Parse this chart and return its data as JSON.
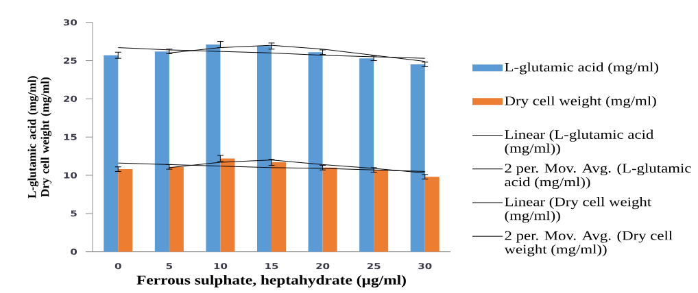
{
  "chart_data": {
    "type": "bar",
    "categories": [
      "0",
      "5",
      "10",
      "15",
      "20",
      "25",
      "30"
    ],
    "xlabel": "Ferrous sulphate, heptahydrate (µg/ml)",
    "ylabel": "L-glutamic acid (mg/ml) Dry cell weight (mg/ml)",
    "ylim": [
      0,
      30
    ],
    "yticks": [
      0,
      5,
      10,
      15,
      20,
      25,
      30
    ],
    "legend": "right",
    "series": [
      {
        "name": "L-glutamic acid (mg/ml)",
        "color": "#5b9bd5",
        "values": [
          25.7,
          26.2,
          27.1,
          26.9,
          26.1,
          25.3,
          24.5
        ],
        "errors": [
          0.4,
          0.3,
          0.4,
          0.4,
          0.3,
          0.3,
          0.3
        ]
      },
      {
        "name": "Dry cell weight (mg/ml)",
        "color": "#ed7d31",
        "values": [
          10.8,
          11.1,
          12.2,
          11.7,
          11.0,
          10.7,
          9.8
        ],
        "errors": [
          0.3,
          0.3,
          0.4,
          0.4,
          0.3,
          0.3,
          0.3
        ]
      },
      {
        "name": "Linear (L-glutamic acid (mg/ml))",
        "type": "line",
        "color": "#000000",
        "values": [
          26.7,
          26.4,
          26.2,
          26.0,
          25.7,
          25.5,
          25.3
        ]
      },
      {
        "name": "2 per. Mov. Avg. (L-glutamic acid (mg/ml))",
        "type": "line",
        "color": "#000000",
        "values": [
          null,
          26.0,
          26.7,
          27.0,
          26.5,
          25.7,
          24.9
        ]
      },
      {
        "name": "Linear (Dry cell weight (mg/ml))",
        "type": "line",
        "color": "#000000",
        "values": [
          11.6,
          11.4,
          11.2,
          11.0,
          10.9,
          10.7,
          10.5
        ]
      },
      {
        "name": "2 per. Mov. Avg. (Dry cell weight (mg/ml))",
        "type": "line",
        "color": "#000000",
        "values": [
          null,
          11.0,
          11.7,
          12.0,
          11.4,
          10.9,
          10.3
        ]
      }
    ]
  }
}
